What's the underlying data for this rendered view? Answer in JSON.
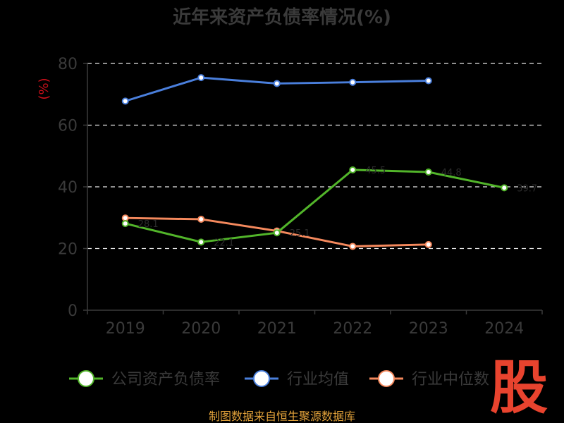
{
  "chart_data": {
    "type": "line",
    "title": "近年来资产负债率情况(%)",
    "ylabel": "(%)",
    "xlabel": "",
    "categories": [
      "2019",
      "2020",
      "2021",
      "2022",
      "2023",
      "2024"
    ],
    "ylim": [
      0,
      80
    ],
    "yticks": [
      0,
      20,
      40,
      60,
      80
    ],
    "grid": true,
    "legend_position": "bottom",
    "series": [
      {
        "name": "公司资产负债率",
        "color": "#52b52a",
        "values": [
          28.1,
          22.1,
          25.1,
          45.5,
          44.8,
          39.7
        ]
      },
      {
        "name": "行业均值",
        "color": "#4a7fdc",
        "values": [
          67.8,
          75.4,
          73.5,
          73.9,
          74.4,
          null
        ]
      },
      {
        "name": "行业中位数",
        "color": "#f5895d",
        "values": [
          29.9,
          29.5,
          25.7,
          20.7,
          21.3,
          null
        ]
      }
    ]
  },
  "source_text": "制图数据来自恒生聚源数据库",
  "watermark_text": "股"
}
